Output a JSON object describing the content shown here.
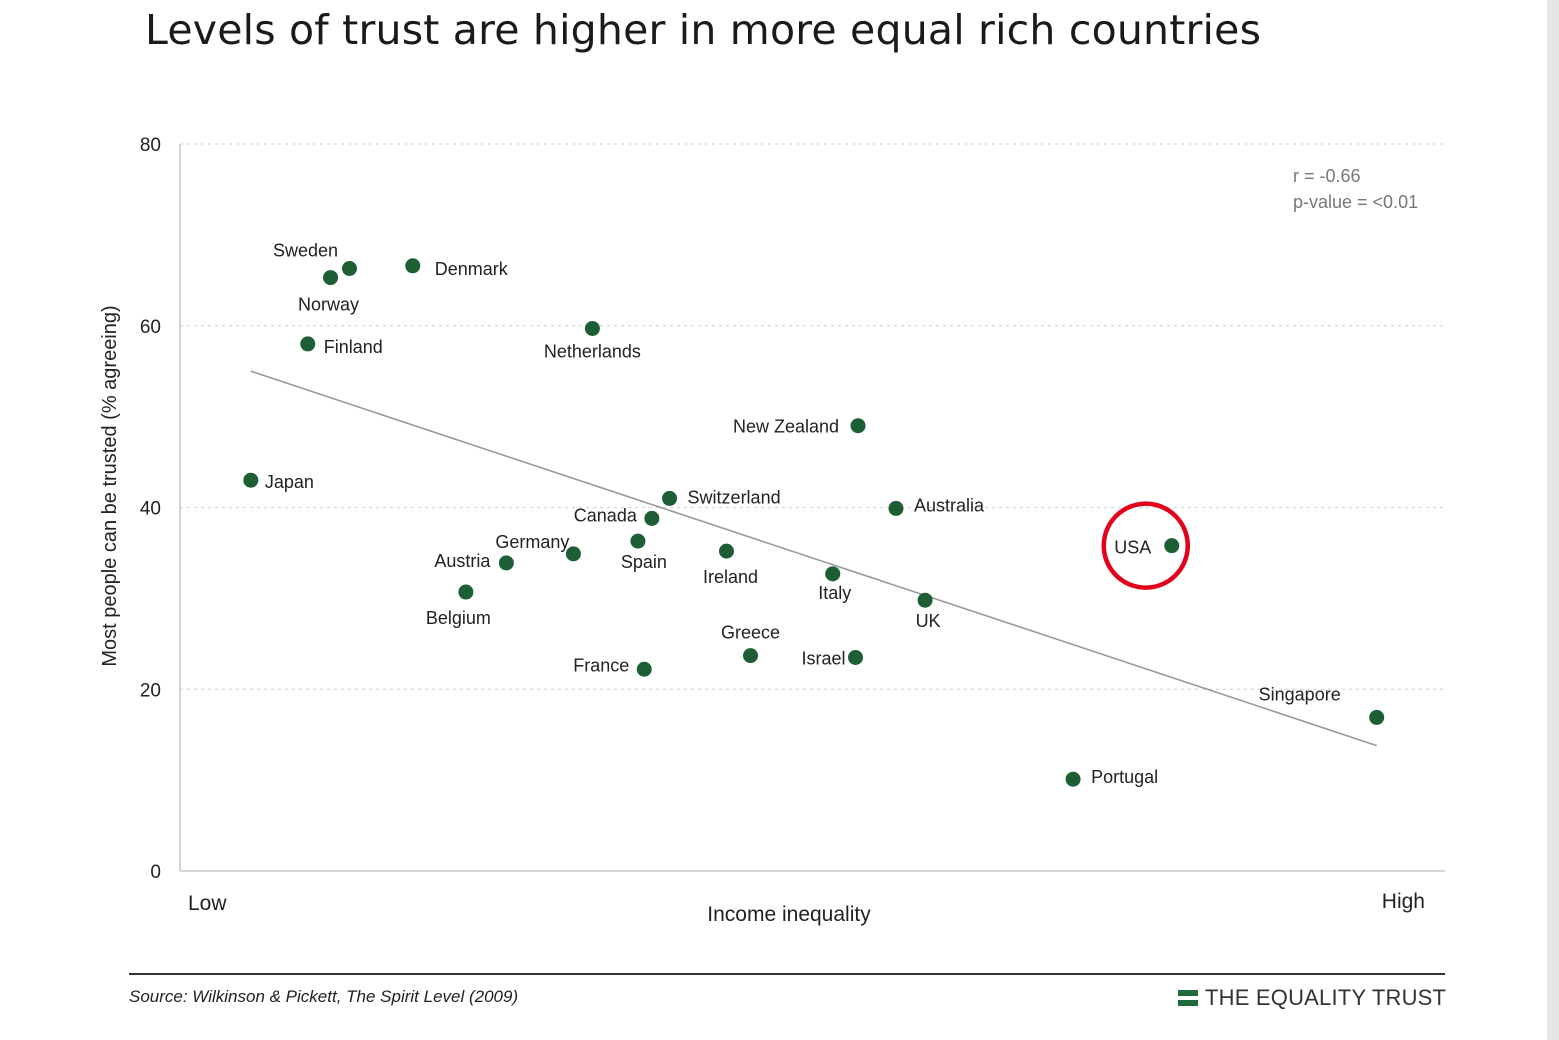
{
  "title": "Levels of trust are higher in more equal rich countries",
  "chart_data": {
    "type": "scatter",
    "title": "Levels of trust are higher in more equal rich countries",
    "xlabel": "Income inequality",
    "ylabel": "Most people can be trusted (% agreeing)",
    "x_tick_labels": [
      "Low",
      "High"
    ],
    "xlim": [
      0,
      100
    ],
    "ylim": [
      0,
      80
    ],
    "y_ticks": [
      "0",
      "20",
      "40",
      "60",
      "80"
    ],
    "grid": "horizontal dashed",
    "annotation": [
      "r = -0.66",
      "p-value = <0.01"
    ],
    "points": [
      {
        "label": "Japan",
        "x": 5.6,
        "y": 43.0
      },
      {
        "label": "Finland",
        "x": 10.1,
        "y": 58.0
      },
      {
        "label": "Norway",
        "x": 11.9,
        "y": 65.3
      },
      {
        "label": "Sweden",
        "x": 13.4,
        "y": 66.3
      },
      {
        "label": "Denmark",
        "x": 18.4,
        "y": 66.6
      },
      {
        "label": "Belgium",
        "x": 22.6,
        "y": 30.7
      },
      {
        "label": "Austria",
        "x": 25.8,
        "y": 33.9
      },
      {
        "label": "Germany",
        "x": 31.1,
        "y": 34.9
      },
      {
        "label": "Netherlands",
        "x": 32.6,
        "y": 59.7
      },
      {
        "label": "Spain",
        "x": 36.2,
        "y": 36.3
      },
      {
        "label": "Canada",
        "x": 37.3,
        "y": 38.8
      },
      {
        "label": "France",
        "x": 36.7,
        "y": 22.2
      },
      {
        "label": "Switzerland",
        "x": 38.7,
        "y": 41.0
      },
      {
        "label": "Ireland",
        "x": 43.2,
        "y": 35.2
      },
      {
        "label": "Greece",
        "x": 45.1,
        "y": 23.7
      },
      {
        "label": "Italy",
        "x": 51.6,
        "y": 32.7
      },
      {
        "label": "New Zealand",
        "x": 53.6,
        "y": 49.0
      },
      {
        "label": "Israel",
        "x": 53.4,
        "y": 23.5
      },
      {
        "label": "Australia",
        "x": 56.6,
        "y": 39.9
      },
      {
        "label": "UK",
        "x": 58.9,
        "y": 29.8
      },
      {
        "label": "Portugal",
        "x": 70.6,
        "y": 10.1
      },
      {
        "label": "USA",
        "x": 78.4,
        "y": 35.8
      },
      {
        "label": "Singapore",
        "x": 94.6,
        "y": 16.9
      }
    ],
    "trendline": {
      "x": [
        5.6,
        94.6
      ],
      "y": [
        55.0,
        13.8
      ]
    },
    "highlight": "USA"
  },
  "colors": {
    "point": "#1d5e34",
    "trendline": "#9a9a9a",
    "highlight": "#e3001b",
    "grid": "#d6d6d6",
    "brand": "#1f6a3c"
  },
  "footer": {
    "source": "Source: Wilkinson & Pickett, The Spirit Level (2009)",
    "brand": "THE EQUALITY TRUST"
  }
}
